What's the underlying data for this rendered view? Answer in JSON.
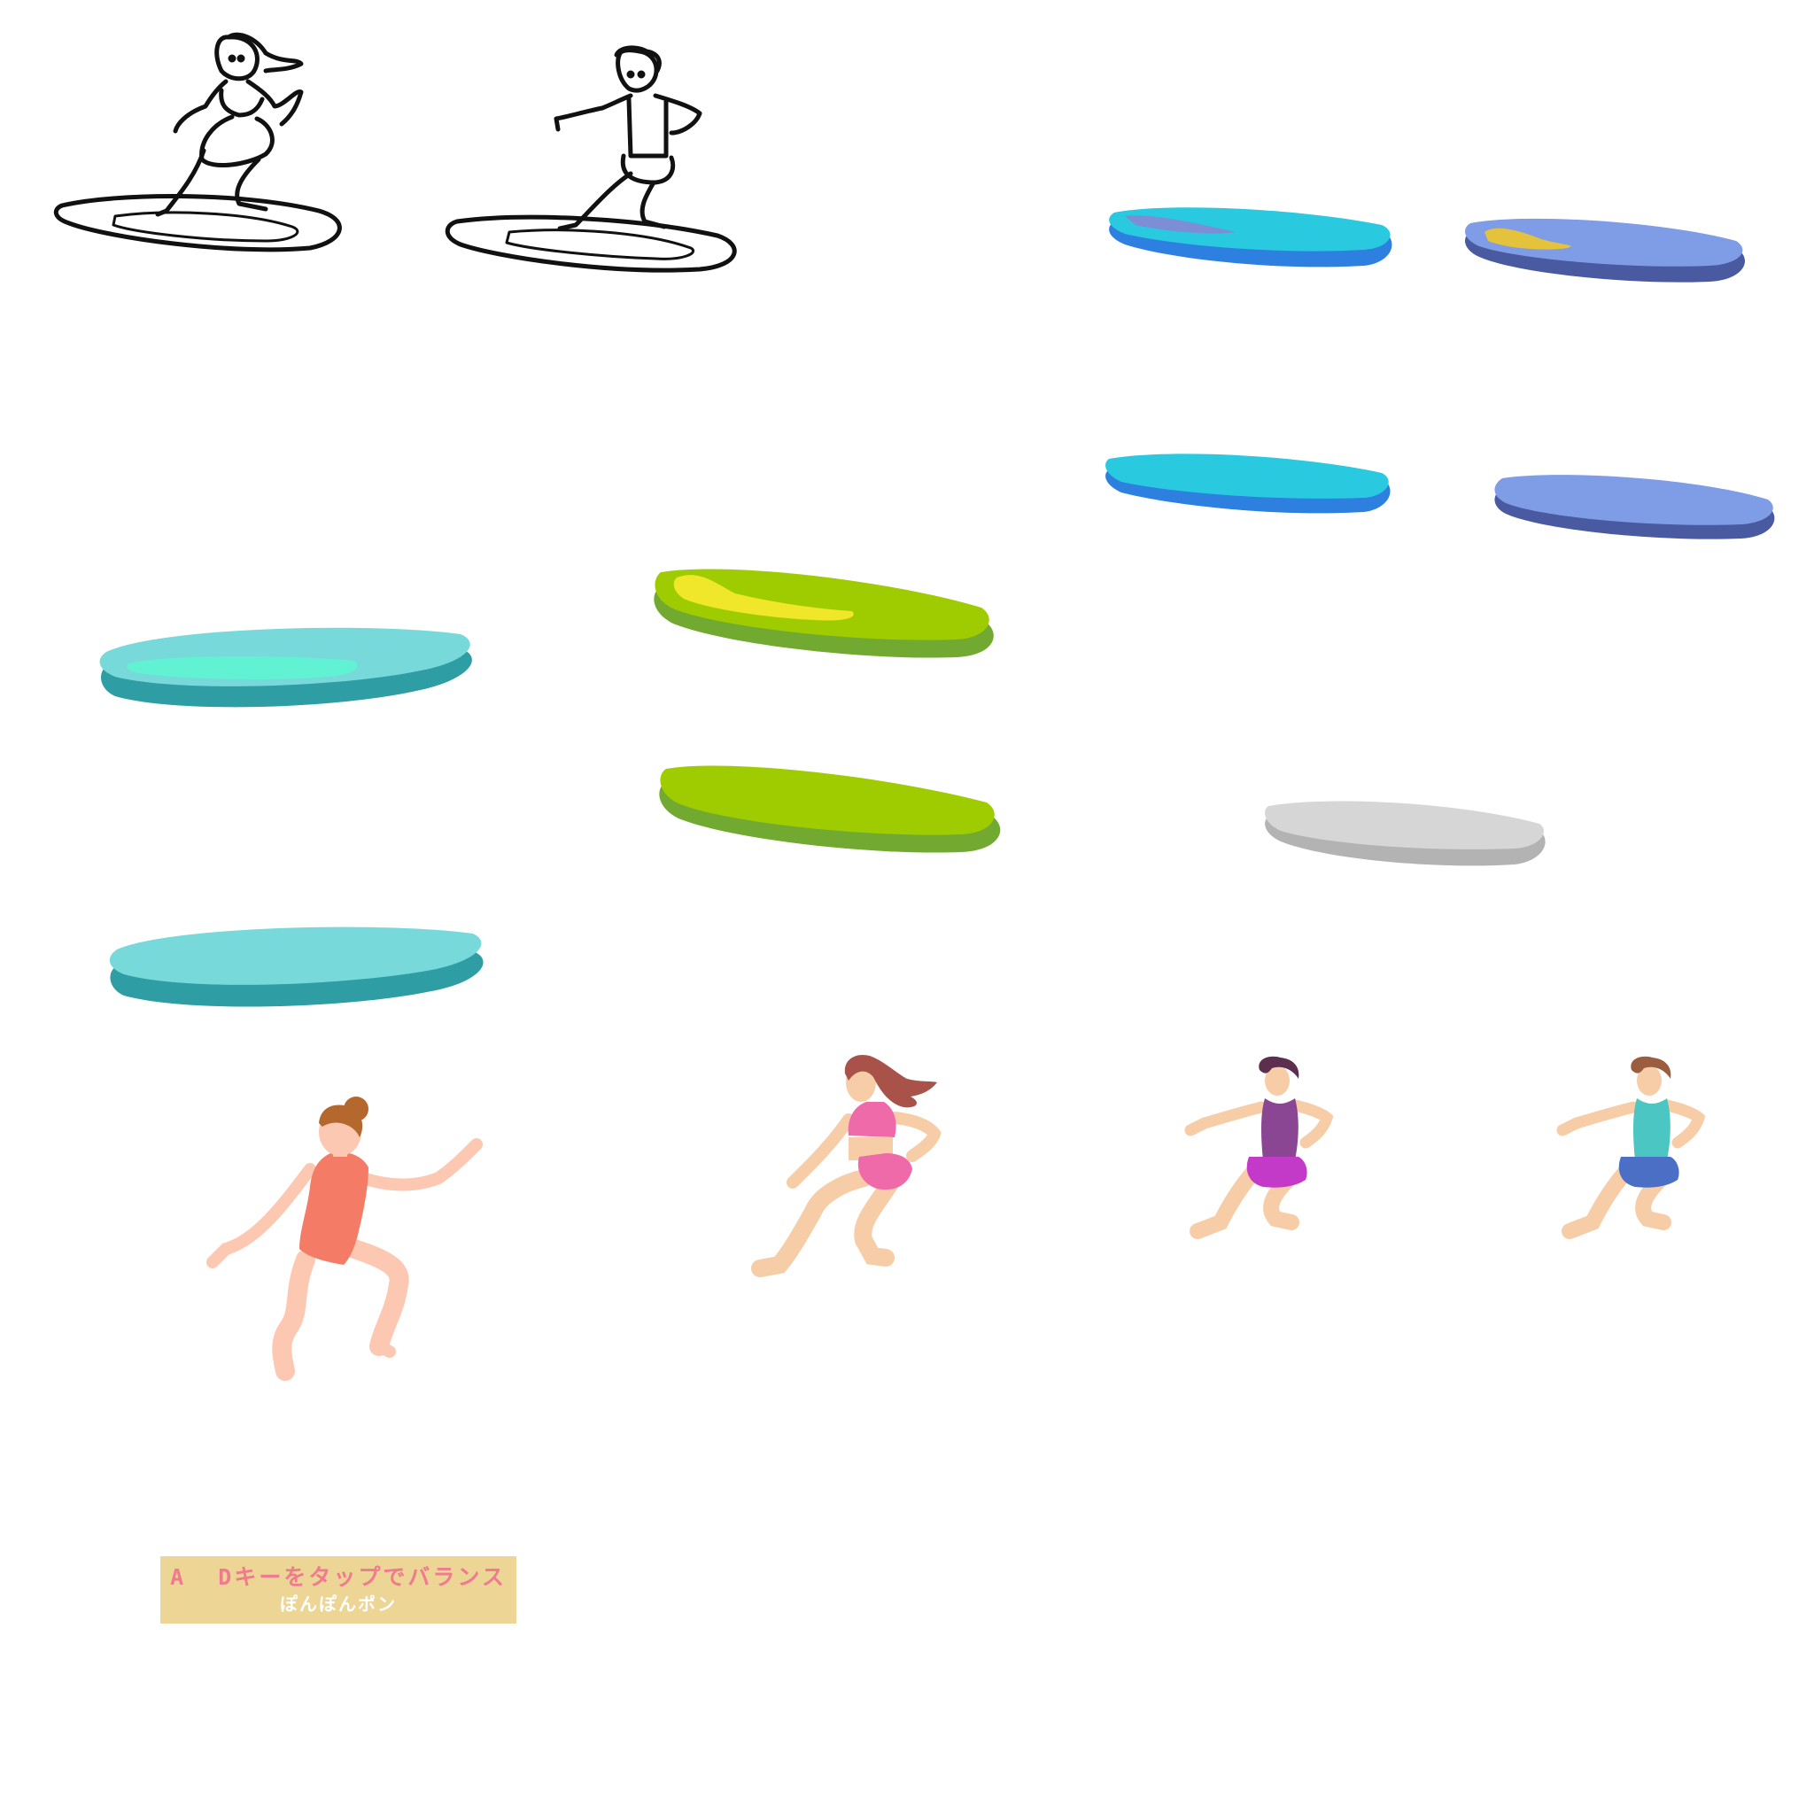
{
  "controls_hint": {
    "keys_line": "A  Dキーをタップでバランス",
    "sound_line": "ぽんぽんポン",
    "panel_color": "#ecd595",
    "keys_color": "#f07a8f",
    "sound_color": "#ffffff"
  },
  "sprites": {
    "line_art": [
      "surfer-girl-line-art",
      "surfer-boy-line-art"
    ],
    "boards": [
      {
        "name": "blue-board-with-stripe",
        "top": "#29c9df",
        "bottom": "#2d7fe0",
        "stripe": "#7b8ed6"
      },
      {
        "name": "periwinkle-board-with-stripe",
        "top": "#7e9de6",
        "bottom": "#4a5aa0",
        "stripe": "#e5c23c"
      },
      {
        "name": "blue-board",
        "top": "#29c9df",
        "bottom": "#2d7fe0"
      },
      {
        "name": "periwinkle-board",
        "top": "#7e9de6",
        "bottom": "#4a5aa0"
      },
      {
        "name": "lime-board-with-stripe",
        "top": "#9ecc00",
        "bottom": "#72aa31",
        "stripe": "#f0e62a"
      },
      {
        "name": "teal-board-with-stripe",
        "top": "#78d9db",
        "bottom": "#2e9ea4",
        "stripe": "#61f2d4"
      },
      {
        "name": "lime-board",
        "top": "#9ecc00",
        "bottom": "#72aa31"
      },
      {
        "name": "gray-board",
        "top": "#d6d6d6",
        "bottom": "#b3b3b3"
      },
      {
        "name": "teal-board",
        "top": "#78d9db",
        "bottom": "#2e9ea4"
      }
    ],
    "characters": [
      {
        "name": "girl-coral-swimsuit",
        "outfit": "#f47c66",
        "hair": "#b5682d",
        "skin": "#fdc8b2"
      },
      {
        "name": "girl-pink-bikini",
        "outfit": "#ef6aa8",
        "hair": "#a8524a",
        "skin": "#f7cda8"
      },
      {
        "name": "boy-purple-magenta",
        "top": "#8a4593",
        "shorts": "#c43ac8",
        "hair": "#5c2f4e",
        "skin": "#f7cda8"
      },
      {
        "name": "boy-teal-blue",
        "top": "#4cc6c2",
        "shorts": "#4a6fc4",
        "hair": "#9a5d3f",
        "skin": "#f7cda8"
      }
    ]
  }
}
